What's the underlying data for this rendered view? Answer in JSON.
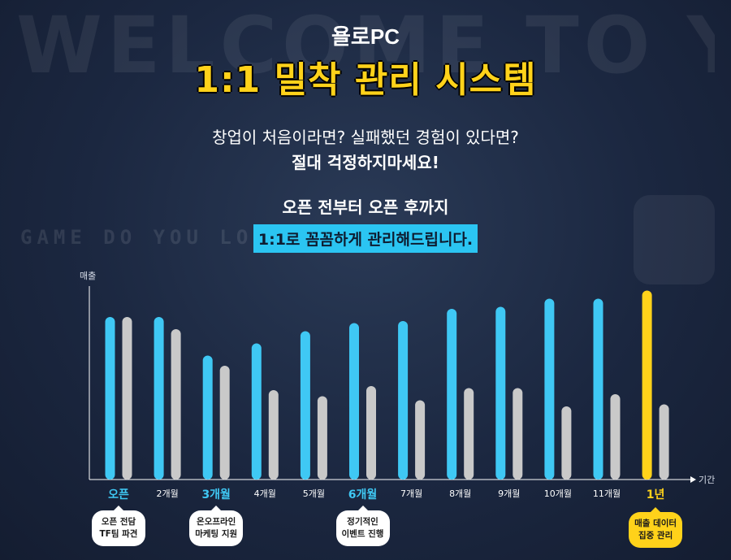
{
  "background": {
    "sign_welcome": "WELCOME TO YOLO",
    "sign_game": "GAME DO YOU LOVE?"
  },
  "header": {
    "brand": "욜로PC",
    "title": "1:1 밀착 관리 시스템",
    "line1": "창업이 처음이라면? 실패했던 경험이 있다면?",
    "line2": "절대 걱정하지마세요!",
    "line3": "오픈 전부터 오픈 후까지",
    "highlight": "1:1로 꼼꼼하게 관리해드립니다."
  },
  "colors": {
    "accent_yellow": "#ffd21a",
    "sales_blue": "#3fc8f4",
    "other_gray": "#c9c9c9",
    "highlight_bg": "#2bc5f2"
  },
  "badges": [
    {
      "line1": "오픈 전담",
      "line2": "TF팀 파견",
      "style": "white"
    },
    {
      "line1": "온오프라인",
      "line2": "마케팅 지원",
      "style": "white"
    },
    {
      "line1": "정기적인",
      "line2": "이벤트 진행",
      "style": "white"
    },
    {
      "line1": "매출 데이터",
      "line2": "집중 관리",
      "style": "yellow"
    }
  ],
  "chart_data": {
    "type": "bar",
    "xlabel": "기간",
    "ylabel": "매출",
    "ylim": [
      0,
      100
    ],
    "categories": [
      "오픈",
      "2개월",
      "3개월",
      "4개월",
      "5개월",
      "6개월",
      "7개월",
      "8개월",
      "9개월",
      "10개월",
      "11개월",
      "1년"
    ],
    "highlight_categories": {
      "오픈": "#3fc8f4",
      "3개월": "#3fc8f4",
      "6개월": "#3fc8f4",
      "1년": "#ffd21a"
    },
    "series": [
      {
        "values": [
          80,
          80,
          61,
          67,
          73,
          77,
          78,
          84,
          85,
          89,
          89,
          93
        ],
        "color": "#3fc8f4",
        "last_color": "#ffd21a"
      },
      {
        "values": [
          80,
          74,
          56,
          44,
          41,
          46,
          39,
          45,
          45,
          36,
          42,
          37
        ],
        "color": "#c9c9c9"
      }
    ],
    "grid": false,
    "legend": "none"
  }
}
